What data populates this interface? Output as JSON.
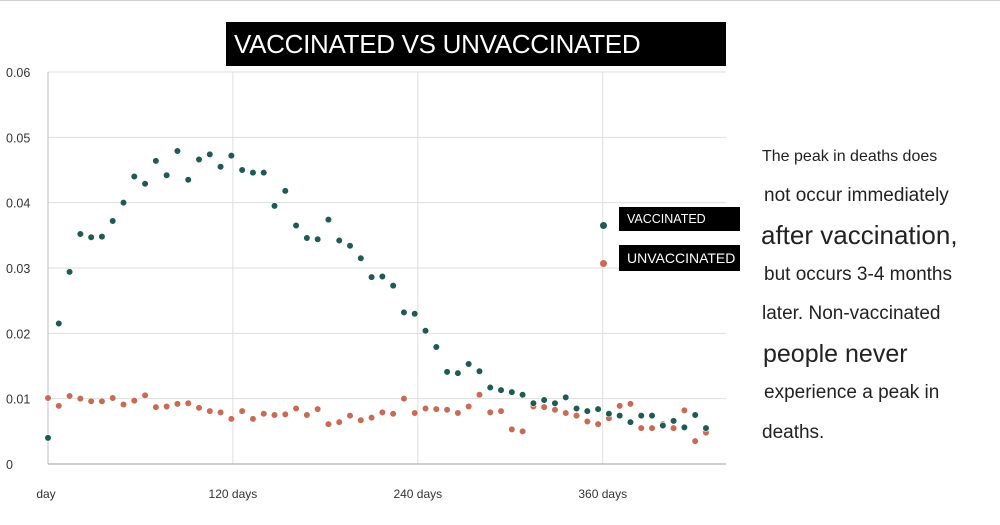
{
  "chart_data": {
    "type": "scatter",
    "title": "VACCINATED VS UNVACCINATED",
    "xlabel": "",
    "ylabel": "",
    "xlim": [
      0,
      440
    ],
    "ylim": [
      0,
      0.06
    ],
    "grid": true,
    "legend_position": "right",
    "y_ticks": [
      "0.06",
      "0.05",
      "0.04",
      "0.03",
      "0.02",
      "0.01",
      "0"
    ],
    "y_tick_values": [
      0.06,
      0.05,
      0.04,
      0.03,
      0.02,
      0.01,
      0
    ],
    "x_ticks": [
      "day",
      "120 days",
      "240 days",
      "360 days"
    ],
    "x_tick_values": [
      0,
      120,
      240,
      360
    ],
    "series": [
      {
        "name": "VACCINATED",
        "color": "#1f5a54",
        "x": [
          0,
          7,
          14,
          21,
          28,
          35,
          42,
          49,
          56,
          63,
          70,
          77,
          84,
          91,
          98,
          105,
          112,
          119,
          126,
          133,
          140,
          147,
          154,
          161,
          168,
          175,
          182,
          189,
          196,
          203,
          210,
          217,
          224,
          231,
          238,
          245,
          252,
          259,
          266,
          273,
          280,
          287,
          294,
          301,
          308,
          315,
          322,
          329,
          336,
          343,
          350,
          357,
          364,
          371,
          378,
          385,
          392,
          399,
          406,
          413,
          420,
          427
        ],
        "y": [
          0.004,
          0.0215,
          0.0294,
          0.0352,
          0.0347,
          0.0348,
          0.0372,
          0.04,
          0.044,
          0.0429,
          0.0464,
          0.0442,
          0.0479,
          0.0435,
          0.0466,
          0.0474,
          0.0455,
          0.0472,
          0.045,
          0.0446,
          0.0446,
          0.0395,
          0.0418,
          0.0365,
          0.0346,
          0.0344,
          0.0374,
          0.0342,
          0.0334,
          0.0315,
          0.0286,
          0.0287,
          0.0273,
          0.0232,
          0.023,
          0.0204,
          0.0179,
          0.0141,
          0.0139,
          0.0153,
          0.0142,
          0.0117,
          0.0113,
          0.011,
          0.0106,
          0.0093,
          0.0098,
          0.0093,
          0.0102,
          0.0085,
          0.0081,
          0.0084,
          0.0077,
          0.0074,
          0.0064,
          0.0074,
          0.0074,
          0.0059,
          0.0066,
          0.0056,
          0.0075,
          0.0055
        ]
      },
      {
        "name": "UNVACCINATED",
        "color": "#c96a55",
        "x": [
          0,
          7,
          14,
          21,
          28,
          35,
          42,
          49,
          56,
          63,
          70,
          77,
          84,
          91,
          98,
          105,
          112,
          119,
          126,
          133,
          140,
          147,
          154,
          161,
          168,
          175,
          182,
          189,
          196,
          203,
          210,
          217,
          224,
          231,
          238,
          245,
          252,
          259,
          266,
          273,
          280,
          287,
          294,
          301,
          308,
          315,
          322,
          329,
          336,
          343,
          350,
          357,
          364,
          371,
          378,
          385,
          392,
          399,
          406,
          413,
          420,
          427
        ],
        "y": [
          0.0101,
          0.0089,
          0.0104,
          0.01,
          0.0096,
          0.0096,
          0.0101,
          0.0091,
          0.0097,
          0.0105,
          0.0087,
          0.0088,
          0.0092,
          0.0093,
          0.0086,
          0.0081,
          0.0079,
          0.0069,
          0.0081,
          0.0069,
          0.0077,
          0.0075,
          0.0076,
          0.0085,
          0.0075,
          0.0084,
          0.0061,
          0.0064,
          0.0074,
          0.0067,
          0.0071,
          0.0079,
          0.0077,
          0.01,
          0.0078,
          0.0085,
          0.0084,
          0.0083,
          0.0078,
          0.0088,
          0.0106,
          0.0079,
          0.0081,
          0.0053,
          0.005,
          0.0088,
          0.0087,
          0.0083,
          0.0078,
          0.0074,
          0.0065,
          0.0061,
          0.007,
          0.0089,
          0.0092,
          0.0055,
          0.0055,
          0.0061,
          0.0055,
          0.0082,
          0.0035,
          0.0048
        ]
      }
    ],
    "annotation_lines": [
      "The peak in deaths does",
      "not occur immediately",
      "after vaccination,",
      "but occurs 3-4 months",
      "later. Non-vaccinated",
      "people never",
      "experience a peak in",
      "deaths."
    ]
  }
}
